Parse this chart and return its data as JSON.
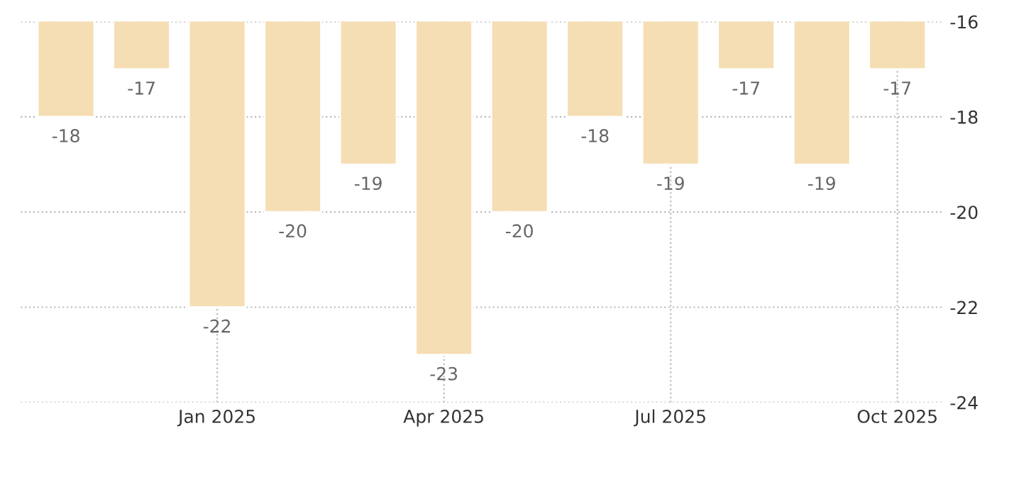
{
  "chart_data": {
    "type": "bar",
    "categories": [
      null,
      null,
      "Jan 2025",
      null,
      null,
      "Apr 2025",
      null,
      null,
      "Jul 2025",
      null,
      null,
      "Oct 2025"
    ],
    "values": [
      -18,
      -17,
      -22,
      -20,
      -19,
      -23,
      -20,
      -18,
      -19,
      -17,
      -19,
      -17
    ],
    "color": "#f5deb3",
    "ylim": [
      -24,
      -16
    ],
    "yticks": [
      -24,
      -22,
      -20,
      -18,
      -16
    ],
    "grid": true,
    "data_labels": true
  }
}
